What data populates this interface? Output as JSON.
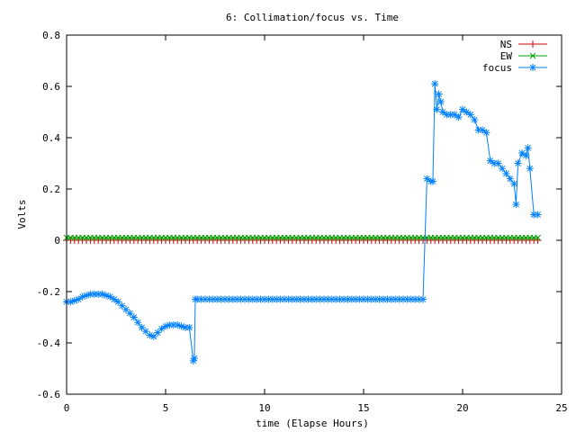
{
  "chart_data": {
    "type": "line",
    "title": "6: Collimation/focus vs. Time",
    "xlabel": "time (Elapse Hours)",
    "ylabel": "Volts",
    "xlim": [
      0,
      25
    ],
    "ylim": [
      -0.6,
      0.8
    ],
    "xticks": [
      0,
      5,
      10,
      15,
      20,
      25
    ],
    "yticks": [
      -0.6,
      -0.4,
      -0.2,
      0,
      0.2,
      0.4,
      0.6,
      0.8
    ],
    "xtick_labels": [
      "0",
      "5",
      "10",
      "15",
      "20",
      "25"
    ],
    "ytick_labels": [
      "-0.6",
      "-0.4",
      "-0.2",
      "0",
      "0.2",
      "0.4",
      "0.6",
      "0.8"
    ],
    "grid": false,
    "legend_position": "top-right",
    "series": [
      {
        "name": "NS",
        "color": "#cc0000",
        "marker": "plus",
        "x": [
          0,
          0.2,
          0.4,
          0.6,
          0.8,
          1.0,
          1.2,
          1.4,
          1.6,
          1.8,
          2.0,
          2.2,
          2.4,
          2.6,
          2.8,
          3.0,
          3.2,
          3.4,
          3.6,
          3.8,
          4.0,
          4.2,
          4.4,
          4.6,
          4.8,
          5.0,
          5.2,
          5.4,
          5.6,
          5.8,
          6.0,
          6.2,
          6.4,
          6.6,
          6.8,
          7.0,
          7.2,
          7.4,
          7.6,
          7.8,
          8.0,
          8.2,
          8.4,
          8.6,
          8.8,
          9.0,
          9.2,
          9.4,
          9.6,
          9.8,
          10.0,
          10.2,
          10.4,
          10.6,
          10.8,
          11.0,
          11.2,
          11.4,
          11.6,
          11.8,
          12.0,
          12.2,
          12.4,
          12.6,
          12.8,
          13.0,
          13.2,
          13.4,
          13.6,
          13.8,
          14.0,
          14.2,
          14.4,
          14.6,
          14.8,
          15.0,
          15.2,
          15.4,
          15.6,
          15.8,
          16.0,
          16.2,
          16.4,
          16.6,
          16.8,
          17.0,
          17.2,
          17.4,
          17.6,
          17.8,
          18.0,
          18.2,
          18.4,
          18.6,
          18.8,
          19.0,
          19.2,
          19.4,
          19.6,
          19.8,
          20.0,
          20.2,
          20.4,
          20.6,
          20.8,
          21.0,
          21.2,
          21.4,
          21.6,
          21.8,
          22.0,
          22.2,
          22.4,
          22.6,
          22.8,
          23.0,
          23.2,
          23.4,
          23.6,
          23.8
        ],
        "y": [
          0,
          0,
          0,
          0,
          0,
          0,
          0,
          0,
          0,
          0,
          0,
          0,
          0,
          0,
          0,
          0,
          0,
          0,
          0,
          0,
          0,
          0,
          0,
          0,
          0,
          0,
          0,
          0,
          0,
          0,
          0,
          0,
          0,
          0,
          0,
          0,
          0,
          0,
          0,
          0,
          0,
          0,
          0,
          0,
          0,
          0,
          0,
          0,
          0,
          0,
          0,
          0,
          0,
          0,
          0,
          0,
          0,
          0,
          0,
          0,
          0,
          0,
          0,
          0,
          0,
          0,
          0,
          0,
          0,
          0,
          0,
          0,
          0,
          0,
          0,
          0,
          0,
          0,
          0,
          0,
          0,
          0,
          0,
          0,
          0,
          0,
          0,
          0,
          0,
          0,
          0,
          0,
          0,
          0,
          0,
          0,
          0,
          0,
          0,
          0,
          0,
          0,
          0,
          0,
          0,
          0,
          0,
          0,
          0,
          0,
          0,
          0,
          0,
          0,
          0,
          0,
          0,
          0,
          0,
          0
        ]
      },
      {
        "name": "EW",
        "color": "#00a000",
        "marker": "cross",
        "x": [
          0,
          0.2,
          0.4,
          0.6,
          0.8,
          1.0,
          1.2,
          1.4,
          1.6,
          1.8,
          2.0,
          2.2,
          2.4,
          2.6,
          2.8,
          3.0,
          3.2,
          3.4,
          3.6,
          3.8,
          4.0,
          4.2,
          4.4,
          4.6,
          4.8,
          5.0,
          5.2,
          5.4,
          5.6,
          5.8,
          6.0,
          6.2,
          6.4,
          6.6,
          6.8,
          7.0,
          7.2,
          7.4,
          7.6,
          7.8,
          8.0,
          8.2,
          8.4,
          8.6,
          8.8,
          9.0,
          9.2,
          9.4,
          9.6,
          9.8,
          10.0,
          10.2,
          10.4,
          10.6,
          10.8,
          11.0,
          11.2,
          11.4,
          11.6,
          11.8,
          12.0,
          12.2,
          12.4,
          12.6,
          12.8,
          13.0,
          13.2,
          13.4,
          13.6,
          13.8,
          14.0,
          14.2,
          14.4,
          14.6,
          14.8,
          15.0,
          15.2,
          15.4,
          15.6,
          15.8,
          16.0,
          16.2,
          16.4,
          16.6,
          16.8,
          17.0,
          17.2,
          17.4,
          17.6,
          17.8,
          18.0,
          18.2,
          18.4,
          18.6,
          18.8,
          19.0,
          19.2,
          19.4,
          19.6,
          19.8,
          20.0,
          20.2,
          20.4,
          20.6,
          20.8,
          21.0,
          21.2,
          21.4,
          21.6,
          21.8,
          22.0,
          22.2,
          22.4,
          22.6,
          22.8,
          23.0,
          23.2,
          23.4,
          23.6,
          23.8
        ],
        "y": [
          0.01,
          0.01,
          0.01,
          0.01,
          0.01,
          0.01,
          0.01,
          0.01,
          0.01,
          0.01,
          0.01,
          0.01,
          0.01,
          0.01,
          0.01,
          0.01,
          0.01,
          0.01,
          0.01,
          0.01,
          0.01,
          0.01,
          0.01,
          0.01,
          0.01,
          0.01,
          0.01,
          0.01,
          0.01,
          0.01,
          0.01,
          0.01,
          0.01,
          0.01,
          0.01,
          0.01,
          0.01,
          0.01,
          0.01,
          0.01,
          0.01,
          0.01,
          0.01,
          0.01,
          0.01,
          0.01,
          0.01,
          0.01,
          0.01,
          0.01,
          0.01,
          0.01,
          0.01,
          0.01,
          0.01,
          0.01,
          0.01,
          0.01,
          0.01,
          0.01,
          0.01,
          0.01,
          0.01,
          0.01,
          0.01,
          0.01,
          0.01,
          0.01,
          0.01,
          0.01,
          0.01,
          0.01,
          0.01,
          0.01,
          0.01,
          0.01,
          0.01,
          0.01,
          0.01,
          0.01,
          0.01,
          0.01,
          0.01,
          0.01,
          0.01,
          0.01,
          0.01,
          0.01,
          0.01,
          0.01,
          0.01,
          0.01,
          0.01,
          0.01,
          0.01,
          0.01,
          0.01,
          0.01,
          0.01,
          0.01,
          0.01,
          0.01,
          0.01,
          0.01,
          0.01,
          0.01,
          0.01,
          0.01,
          0.01,
          0.01,
          0.01,
          0.01,
          0.01,
          0.01,
          0.01,
          0.01,
          0.01,
          0.01,
          0.01,
          0.01
        ]
      },
      {
        "name": "focus",
        "color": "#0080ff",
        "marker": "star",
        "x": [
          0,
          0.2,
          0.4,
          0.6,
          0.8,
          1.0,
          1.2,
          1.4,
          1.6,
          1.8,
          2.0,
          2.2,
          2.4,
          2.6,
          2.8,
          3.0,
          3.2,
          3.4,
          3.6,
          3.8,
          4.0,
          4.2,
          4.4,
          4.6,
          4.8,
          5.0,
          5.2,
          5.4,
          5.6,
          5.8,
          6.0,
          6.2,
          6.4,
          6.45,
          6.5,
          6.6,
          6.8,
          7.0,
          7.2,
          7.4,
          7.6,
          7.8,
          8.0,
          8.2,
          8.4,
          8.6,
          8.8,
          9.0,
          9.2,
          9.4,
          9.6,
          9.8,
          10.0,
          10.2,
          10.4,
          10.6,
          10.8,
          11.0,
          11.2,
          11.4,
          11.6,
          11.8,
          12.0,
          12.2,
          12.4,
          12.6,
          12.8,
          13.0,
          13.2,
          13.4,
          13.6,
          13.8,
          14.0,
          14.2,
          14.4,
          14.6,
          14.8,
          15.0,
          15.2,
          15.4,
          15.6,
          15.8,
          16.0,
          16.2,
          16.4,
          16.6,
          16.8,
          17.0,
          17.2,
          17.4,
          17.6,
          17.8,
          18.0,
          18.2,
          18.4,
          18.5,
          18.6,
          18.7,
          18.8,
          18.9,
          19.0,
          19.2,
          19.4,
          19.6,
          19.8,
          20.0,
          20.2,
          20.4,
          20.6,
          20.8,
          21.0,
          21.2,
          21.4,
          21.6,
          21.8,
          22.0,
          22.2,
          22.4,
          22.6,
          22.7,
          22.8,
          23.0,
          23.2,
          23.3,
          23.4,
          23.6,
          23.8
        ],
        "y": [
          -0.24,
          -0.24,
          -0.235,
          -0.23,
          -0.22,
          -0.215,
          -0.21,
          -0.21,
          -0.21,
          -0.21,
          -0.215,
          -0.22,
          -0.23,
          -0.24,
          -0.255,
          -0.27,
          -0.285,
          -0.3,
          -0.32,
          -0.34,
          -0.355,
          -0.37,
          -0.375,
          -0.36,
          -0.345,
          -0.335,
          -0.33,
          -0.33,
          -0.33,
          -0.335,
          -0.34,
          -0.34,
          -0.47,
          -0.46,
          -0.23,
          -0.23,
          -0.23,
          -0.23,
          -0.23,
          -0.23,
          -0.23,
          -0.23,
          -0.23,
          -0.23,
          -0.23,
          -0.23,
          -0.23,
          -0.23,
          -0.23,
          -0.23,
          -0.23,
          -0.23,
          -0.23,
          -0.23,
          -0.23,
          -0.23,
          -0.23,
          -0.23,
          -0.23,
          -0.23,
          -0.23,
          -0.23,
          -0.23,
          -0.23,
          -0.23,
          -0.23,
          -0.23,
          -0.23,
          -0.23,
          -0.23,
          -0.23,
          -0.23,
          -0.23,
          -0.23,
          -0.23,
          -0.23,
          -0.23,
          -0.23,
          -0.23,
          -0.23,
          -0.23,
          -0.23,
          -0.23,
          -0.23,
          -0.23,
          -0.23,
          -0.23,
          -0.23,
          -0.23,
          -0.23,
          -0.23,
          -0.23,
          -0.23,
          0.24,
          0.23,
          0.23,
          0.61,
          0.51,
          0.57,
          0.54,
          0.5,
          0.49,
          0.49,
          0.49,
          0.48,
          0.51,
          0.5,
          0.49,
          0.47,
          0.43,
          0.43,
          0.42,
          0.31,
          0.3,
          0.3,
          0.28,
          0.26,
          0.24,
          0.22,
          0.14,
          0.3,
          0.34,
          0.33,
          0.36,
          0.28,
          0.1,
          0.1
        ]
      }
    ]
  }
}
